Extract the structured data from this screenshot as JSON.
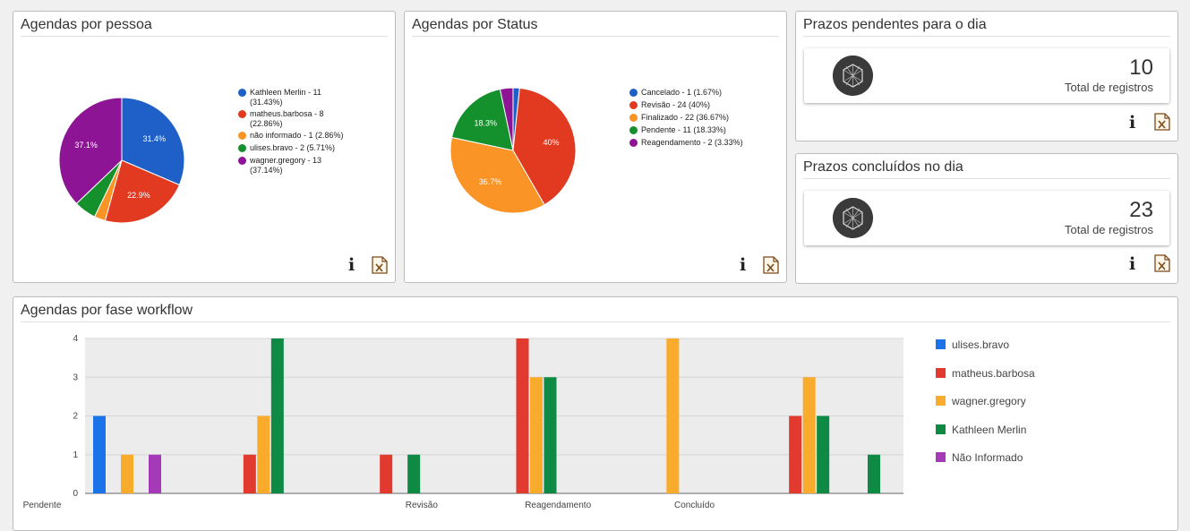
{
  "panels": {
    "pie_pessoa": {
      "title": "Agendas por pessoa"
    },
    "pie_status": {
      "title": "Agendas por Status"
    },
    "kpi_pendentes": {
      "title": "Prazos pendentes para o dia",
      "value": "10",
      "label": "Total de registros"
    },
    "kpi_concluidos": {
      "title": "Prazos concluídos no dia",
      "value": "23",
      "label": "Total de registros"
    },
    "bar_workflow": {
      "title": "Agendas por fase workflow"
    }
  },
  "icons": {
    "info": "info-icon",
    "excel": "excel-export-icon",
    "kpi": "hexagon-logo-icon",
    "info_glyph": "i"
  },
  "chart_data": [
    {
      "type": "pie",
      "title": "Agendas por pessoa",
      "slices": [
        {
          "label": "Kathleen Merlin - 11 (31.43%)",
          "legend_lines": [
            "Kathleen Merlin - 11",
            "(31.43%)"
          ],
          "value": 11,
          "pct_label": "31.4%",
          "color": "#1e5fc8"
        },
        {
          "label": "matheus.barbosa - 8 (22.86%)",
          "legend_lines": [
            "matheus.barbosa - 8",
            "(22.86%)"
          ],
          "value": 8,
          "pct_label": "22.9%",
          "color": "#e23a20"
        },
        {
          "label": "não informado - 1 (2.86%)",
          "legend_lines": [
            "não informado - 1 (2.86%)"
          ],
          "value": 1,
          "pct_label": "",
          "color": "#fb9426"
        },
        {
          "label": "ulises.bravo - 2 (5.71%)",
          "legend_lines": [
            "ulises.bravo - 2 (5.71%)"
          ],
          "value": 2,
          "pct_label": "",
          "color": "#14912c"
        },
        {
          "label": "wagner.gregory - 13 (37.14%)",
          "legend_lines": [
            "wagner.gregory - 13",
            "(37.14%)"
          ],
          "value": 13,
          "pct_label": "37.1%",
          "color": "#8e1496"
        }
      ],
      "legend": "right"
    },
    {
      "type": "pie",
      "title": "Agendas por Status",
      "slices": [
        {
          "label": "Cancelado - 1 (1.67%)",
          "legend_lines": [
            "Cancelado - 1 (1.67%)"
          ],
          "value": 1,
          "pct_label": "",
          "color": "#1e5fc8"
        },
        {
          "label": "Revisão - 24 (40%)",
          "legend_lines": [
            "Revisão - 24 (40%)"
          ],
          "value": 24,
          "pct_label": "40%",
          "color": "#e23a20"
        },
        {
          "label": "Finalizado - 22 (36.67%)",
          "legend_lines": [
            "Finalizado - 22 (36.67%)"
          ],
          "value": 22,
          "pct_label": "36.7%",
          "color": "#fb9426"
        },
        {
          "label": "Pendente - 11 (18.33%)",
          "legend_lines": [
            "Pendente - 11 (18.33%)"
          ],
          "value": 11,
          "pct_label": "18.3%",
          "color": "#14912c"
        },
        {
          "label": "Reagendamento - 2 (3.33%)",
          "legend_lines": [
            "Reagendamento - 2 (3.33%)"
          ],
          "value": 2,
          "pct_label": "",
          "color": "#8e1496"
        }
      ],
      "legend": "right"
    },
    {
      "type": "bar",
      "title": "Agendas por fase workflow",
      "categories": [
        "Pendente",
        "",
        "Revisão",
        "Reagendamento",
        "Concluído",
        ""
      ],
      "series": [
        {
          "name": "ulises.bravo",
          "color": "#1a73e8",
          "values": [
            2,
            0,
            0,
            0,
            0,
            0
          ]
        },
        {
          "name": "matheus.barbosa",
          "color": "#e23a2e",
          "values": [
            0,
            1,
            1,
            4,
            0,
            2
          ]
        },
        {
          "name": "wagner.gregory",
          "color": "#f9ab2c",
          "values": [
            1,
            2,
            0,
            3,
            4,
            3
          ]
        },
        {
          "name": "Kathleen Merlin",
          "color": "#0e8a45",
          "values": [
            0,
            4,
            1,
            3,
            0,
            2
          ]
        },
        {
          "name": "Não Informado",
          "color": "#a43ab8",
          "values": [
            1,
            0,
            0,
            0,
            0,
            0
          ]
        }
      ],
      "extra_bars": [
        {
          "series": "Kathleen Merlin",
          "value": 1,
          "position": "after-last"
        }
      ],
      "ylim": [
        0,
        4
      ],
      "yticks": [
        "0",
        "1",
        "2",
        "3",
        "4"
      ],
      "grid": true,
      "legend": "right"
    }
  ]
}
